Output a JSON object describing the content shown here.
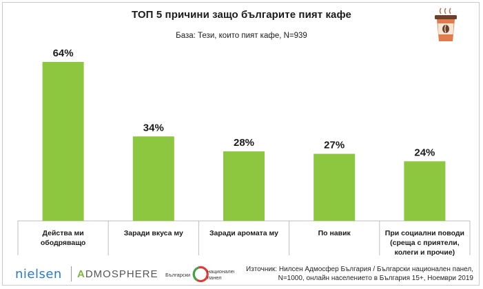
{
  "title": "ТОП 5 причини защо българите пият кафе",
  "subtitle": "База: Тези, които пият кафе, N=939",
  "colors": {
    "bar": "#8dc63f",
    "axis": "#bdbdbd"
  },
  "chart_data": {
    "type": "bar",
    "title": "ТОП 5 причини защо българите пият кафе",
    "subtitle": "База: Тези, които пият кафе, N=939",
    "unit": "%",
    "ylim": [
      0,
      70
    ],
    "grid": false,
    "categories": [
      [
        "Действа ми",
        "ободряващо"
      ],
      [
        "Заради вкуса му"
      ],
      [
        "Заради аромата му"
      ],
      [
        "По навик"
      ],
      [
        "При социални поводи",
        "(среща с приятели,",
        "колеги и прочие)"
      ]
    ],
    "values": [
      64,
      34,
      28,
      27,
      24
    ],
    "data_labels": [
      "64%",
      "34%",
      "28%",
      "27%",
      "24%"
    ]
  },
  "footer": {
    "logo_nielsen": "nielsen",
    "logo_admosphere_a": "A",
    "logo_admosphere_rest": "DMOSPHERE",
    "logo_bnp_left": "Български",
    "logo_bnp_right_1": "национален",
    "logo_bnp_right_2": "панел",
    "source_line1": "Източник: Нилсен Адмосфер България / Български национален панел,",
    "source_line2": "N=1000, онлайн населението в България 15+, Ноември 2019"
  },
  "icons": {
    "cup": "coffee-cup-icon"
  }
}
